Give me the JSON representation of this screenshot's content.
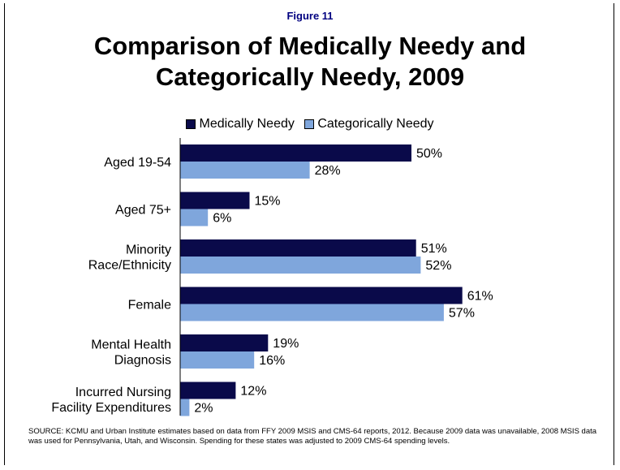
{
  "figure_label": "Figure 11",
  "title_lines": [
    "Comparison of Medically Needy and",
    "Categorically Needy, 2009"
  ],
  "source": "SOURCE: KCMU and Urban Institute estimates based on data from FFY 2009 MSIS and CMS-64 reports, 2012.  Because 2009 data was unavailable, 2008 MSIS data was used for Pennsylvania, Utah, and Wisconsin.  Spending for these states was adjusted to 2009 CMS-64 spending levels.",
  "colors": {
    "medically_needy": "#0a0a4a",
    "categorically_needy": "#7fa6dc"
  },
  "chart_data": {
    "type": "bar",
    "orientation": "horizontal",
    "categories": [
      [
        "Aged 19-54"
      ],
      [
        "Aged 75+"
      ],
      [
        "Minority",
        "Race/Ethnicity"
      ],
      [
        "Female"
      ],
      [
        "Mental Health",
        "Diagnosis"
      ],
      [
        "Incurred Nursing",
        "Facility Expenditures"
      ]
    ],
    "series": [
      {
        "name": "Medically Needy",
        "values": [
          50,
          15,
          51,
          61,
          19,
          12
        ],
        "labels": [
          "50%",
          "15%",
          "51%",
          "61%",
          "19%",
          "12%"
        ]
      },
      {
        "name": "Categorically Needy",
        "values": [
          28,
          6,
          52,
          57,
          16,
          2
        ],
        "labels": [
          "28%",
          "6%",
          "52%",
          "57%",
          "16%",
          "2%"
        ]
      }
    ],
    "xlim": [
      0,
      100
    ],
    "legend": "top",
    "grid": false
  }
}
